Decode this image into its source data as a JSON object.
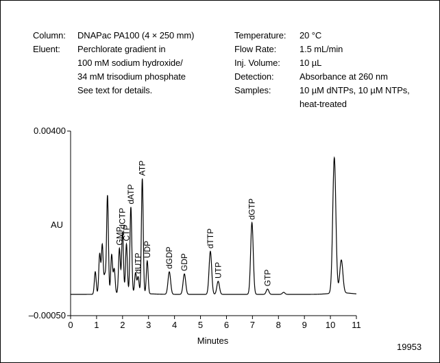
{
  "conditions": {
    "column": {
      "label": "Column:",
      "value": "DNAPac PA100 (4 × 250 mm)"
    },
    "eluent": {
      "label": "Eluent:",
      "lines": [
        "Perchlorate gradient in",
        "100 mM sodium hydroxide/",
        "34 mM trisodium phosphate",
        "See text for details."
      ]
    },
    "temperature": {
      "label": "Temperature:",
      "value": "20 °C"
    },
    "flow_rate": {
      "label": "Flow Rate:",
      "value": "1.5 mL/min"
    },
    "inj_volume": {
      "label": "Inj. Volume:",
      "value": "10 µL"
    },
    "detection": {
      "label": "Detection:",
      "value": "Absorbance at 260 nm"
    },
    "samples": {
      "label": "Samples:",
      "lines": [
        "10 µM dNTPs, 10 µM NTPs,",
        "heat-treated"
      ]
    }
  },
  "figure_id": "19953",
  "chart_data": {
    "type": "line",
    "xlabel": "Minutes",
    "ylabel": "AU",
    "xlim": [
      0,
      11
    ],
    "ylim": [
      -0.0005,
      0.004
    ],
    "x_ticks": [
      0,
      1,
      2,
      3,
      4,
      5,
      6,
      7,
      8,
      9,
      10,
      11
    ],
    "y_tick_labels": [
      "0.00400",
      "–0.00050"
    ],
    "y_tick_values": [
      0.004,
      -0.0005
    ],
    "baseline": 0.0,
    "peaks": [
      {
        "x": 0.95,
        "y": 0.00055,
        "label": ""
      },
      {
        "x": 1.12,
        "y": 0.00098,
        "label": ""
      },
      {
        "x": 1.22,
        "y": 0.0012,
        "label": ""
      },
      {
        "x": 1.32,
        "y": 0.00045,
        "label": ""
      },
      {
        "x": 1.42,
        "y": 0.0024,
        "label": ""
      },
      {
        "x": 1.58,
        "y": 0.00095,
        "label": ""
      },
      {
        "x": 1.68,
        "y": 0.0006,
        "label": ""
      },
      {
        "x": 1.88,
        "y": 0.0011,
        "label": "GMP"
      },
      {
        "x": 2.0,
        "y": 0.0015,
        "label": "dCTP"
      },
      {
        "x": 2.15,
        "y": 0.0012,
        "label": "CTP"
      },
      {
        "x": 2.32,
        "y": 0.0021,
        "label": "dATP"
      },
      {
        "x": 2.5,
        "y": 0.0005,
        "label": ""
      },
      {
        "x": 2.6,
        "y": 0.0004,
        "label": "dUTP"
      },
      {
        "x": 2.76,
        "y": 0.0028,
        "label": "ATP"
      },
      {
        "x": 2.95,
        "y": 0.0008,
        "label": "UDP"
      },
      {
        "x": 3.8,
        "y": 0.00055,
        "label": "dGDP"
      },
      {
        "x": 4.38,
        "y": 0.0005,
        "label": "GDP"
      },
      {
        "x": 5.38,
        "y": 0.00105,
        "label": "dTTP"
      },
      {
        "x": 5.68,
        "y": 0.00032,
        "label": "UTP"
      },
      {
        "x": 6.98,
        "y": 0.00175,
        "label": "dGTP"
      },
      {
        "x": 7.58,
        "y": 0.00013,
        "label": "GTP"
      },
      {
        "x": 8.2,
        "y": 5e-05,
        "label": ""
      },
      {
        "x": 10.15,
        "y": 0.0033,
        "label": ""
      },
      {
        "x": 10.42,
        "y": 0.0008,
        "label": ""
      }
    ],
    "grid": false,
    "legend": "none"
  }
}
